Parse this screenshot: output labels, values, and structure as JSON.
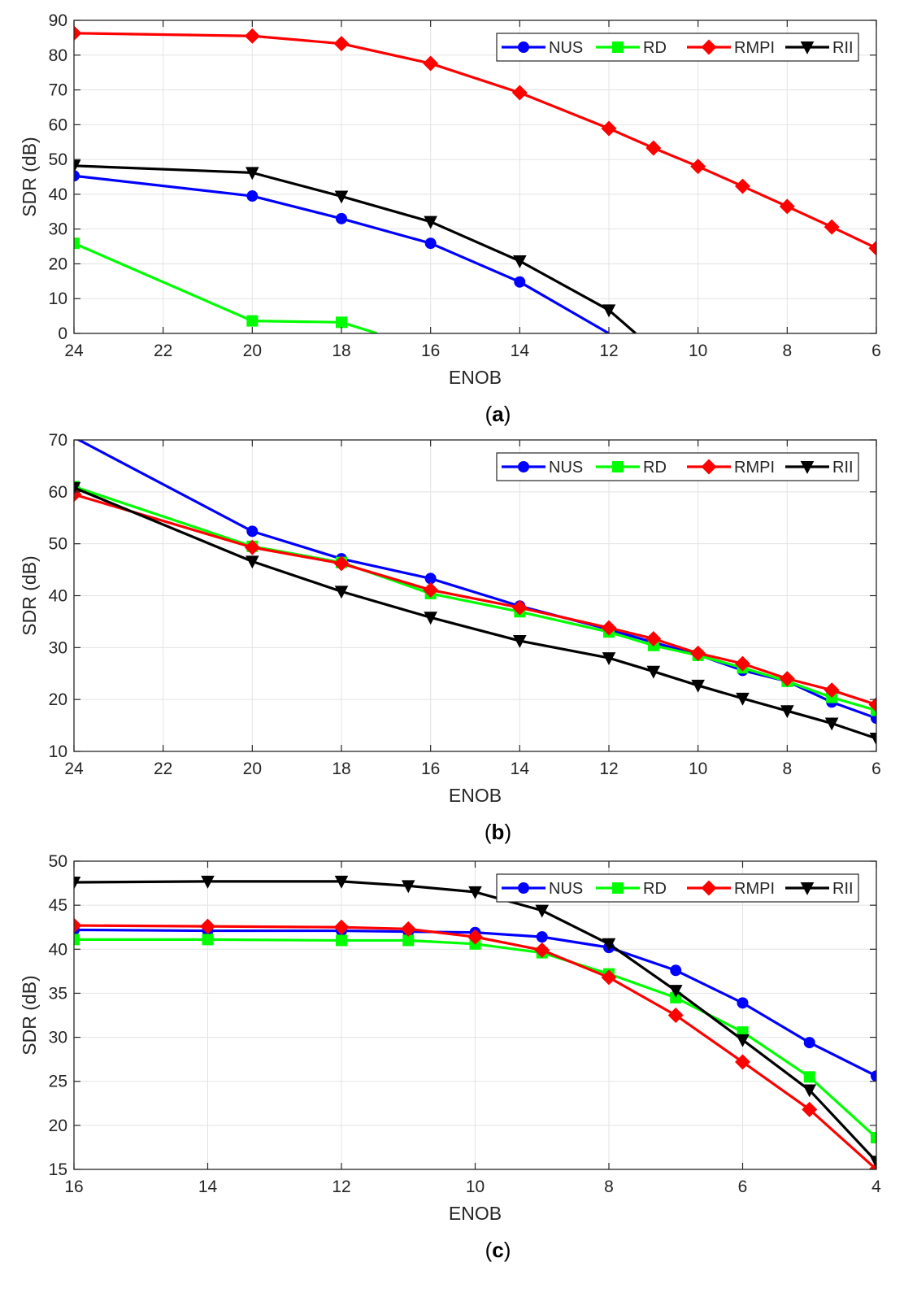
{
  "chart_data": [
    {
      "type": "line",
      "panel_label": "a",
      "xlabel": "ENOB",
      "ylabel": "SDR (dB)",
      "xlim": [
        24,
        6
      ],
      "ylim": [
        0,
        90
      ],
      "xticks": [
        24,
        22,
        20,
        18,
        16,
        14,
        12,
        10,
        8,
        6
      ],
      "yticks": [
        0,
        10,
        20,
        30,
        40,
        50,
        60,
        70,
        80,
        90
      ],
      "grid": true,
      "legend_position": "top-right",
      "series": [
        {
          "name": "NUS",
          "color": "#0000ff",
          "marker": "circle",
          "x": [
            24,
            20,
            18,
            16,
            14,
            12
          ],
          "y": [
            45.3,
            39.5,
            33,
            25.9,
            14.8,
            0
          ]
        },
        {
          "name": "RD",
          "color": "#00ff00",
          "marker": "square",
          "x": [
            24,
            20,
            18,
            17.2
          ],
          "y": [
            25.9,
            3.6,
            3.2,
            0
          ]
        },
        {
          "name": "RMPI",
          "color": "#ff0000",
          "marker": "diamond",
          "x": [
            24,
            20,
            18,
            16,
            14,
            12,
            11,
            10,
            9,
            8,
            7,
            6
          ],
          "y": [
            86.3,
            85.5,
            83.3,
            77.6,
            69.2,
            58.9,
            53.3,
            48,
            42.3,
            36.5,
            30.6,
            24.5
          ]
        },
        {
          "name": "RII",
          "color": "#000000",
          "marker": "triangle-down",
          "x": [
            24,
            20,
            18,
            16,
            14,
            12,
            11.4
          ],
          "y": [
            48.2,
            46.2,
            39.4,
            32.1,
            20.8,
            6.7,
            0
          ]
        }
      ]
    },
    {
      "type": "line",
      "panel_label": "b",
      "xlabel": "ENOB",
      "ylabel": "SDR (dB)",
      "xlim": [
        24,
        6
      ],
      "ylim": [
        10,
        70
      ],
      "xticks": [
        24,
        22,
        20,
        18,
        16,
        14,
        12,
        10,
        8,
        6
      ],
      "yticks": [
        10,
        20,
        30,
        40,
        50,
        60,
        70
      ],
      "grid": true,
      "legend_position": "top-right",
      "series": [
        {
          "name": "NUS",
          "color": "#0000ff",
          "marker": "circle",
          "x": [
            24,
            20,
            18,
            16,
            14,
            12,
            11,
            10,
            9,
            8,
            7,
            6
          ],
          "y": [
            70.5,
            52.4,
            47.1,
            43.3,
            38,
            33.5,
            31,
            28.6,
            25.6,
            23.5,
            19.5,
            16.4
          ]
        },
        {
          "name": "RD",
          "color": "#00ff00",
          "marker": "square",
          "x": [
            24,
            20,
            18,
            16,
            14,
            12,
            11,
            10,
            9,
            8,
            7,
            6
          ],
          "y": [
            61,
            49.5,
            46.4,
            40.4,
            36.9,
            33,
            30.4,
            28.5,
            26.1,
            23.5,
            20.4,
            17.9
          ]
        },
        {
          "name": "RMPI",
          "color": "#ff0000",
          "marker": "diamond",
          "x": [
            24,
            20,
            18,
            16,
            14,
            12,
            11,
            10,
            9,
            8,
            7,
            6
          ],
          "y": [
            59.5,
            49.3,
            46.2,
            41.1,
            37.7,
            33.8,
            31.7,
            28.9,
            26.9,
            24,
            21.8,
            19
          ]
        },
        {
          "name": "RII",
          "color": "#000000",
          "marker": "triangle-down",
          "x": [
            24,
            20,
            18,
            16,
            14,
            12,
            11,
            10,
            9,
            8,
            7,
            6
          ],
          "y": [
            60.8,
            46.6,
            40.8,
            35.8,
            31.3,
            28,
            25.4,
            22.7,
            20.2,
            17.8,
            15.4,
            12.5
          ]
        }
      ]
    },
    {
      "type": "line",
      "panel_label": "c",
      "xlabel": "ENOB",
      "ylabel": "SDR (dB)",
      "xlim": [
        16,
        4
      ],
      "ylim": [
        15,
        50
      ],
      "xticks": [
        16,
        14,
        12,
        10,
        8,
        6,
        4
      ],
      "yticks": [
        15,
        20,
        25,
        30,
        35,
        40,
        45,
        50
      ],
      "grid": true,
      "legend_position": "top-right",
      "series": [
        {
          "name": "NUS",
          "color": "#0000ff",
          "marker": "circle",
          "x": [
            16,
            14,
            12,
            11,
            10,
            9,
            8,
            7,
            6,
            5,
            4
          ],
          "y": [
            42.2,
            42.1,
            42.1,
            42,
            41.9,
            41.4,
            40.2,
            37.6,
            33.9,
            29.4,
            25.6
          ]
        },
        {
          "name": "RD",
          "color": "#00ff00",
          "marker": "square",
          "x": [
            16,
            14,
            12,
            11,
            10,
            9,
            8,
            7,
            6,
            5,
            4
          ],
          "y": [
            41.1,
            41.1,
            41,
            41,
            40.6,
            39.6,
            37.2,
            34.5,
            30.6,
            25.5,
            18.6
          ]
        },
        {
          "name": "RMPI",
          "color": "#ff0000",
          "marker": "diamond",
          "x": [
            16,
            14,
            12,
            11,
            10,
            9,
            8,
            7,
            6,
            5,
            4
          ],
          "y": [
            42.7,
            42.6,
            42.5,
            42.3,
            41.4,
            39.9,
            36.8,
            32.5,
            27.2,
            21.8,
            15
          ]
        },
        {
          "name": "RII",
          "color": "#000000",
          "marker": "triangle-down",
          "x": [
            16,
            14,
            12,
            11,
            10,
            9,
            8,
            7,
            6,
            5,
            4
          ],
          "y": [
            47.6,
            47.7,
            47.7,
            47.2,
            46.5,
            44.4,
            40.6,
            35.3,
            29.7,
            24,
            15.9
          ]
        }
      ]
    }
  ]
}
